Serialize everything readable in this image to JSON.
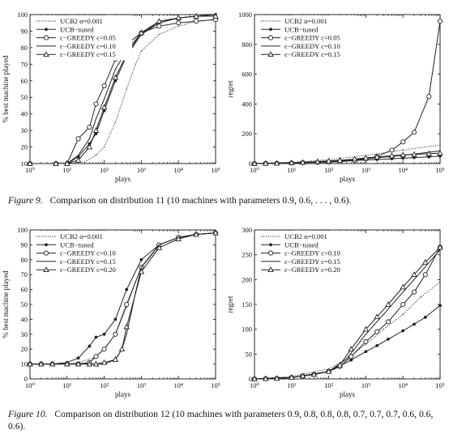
{
  "figure9": {
    "label": "Figure 9.",
    "text": "Comparison on distribution 11 (10 machines with parameters 0.9, 0.6, . . . , 0.6)."
  },
  "figure10": {
    "label": "Figure 10.",
    "text": "Comparison on distribution 12 (10 machines with parameters 0.9, 0.8, 0.8, 0.8, 0.7, 0.7, 0.7, 0.6, 0.6, 0.6)."
  },
  "chart_data": [
    {
      "id": "c1",
      "type": "line",
      "xscale": "log",
      "xlabel": "plays",
      "ylabel": "% best machine played",
      "xlim": [
        1,
        100000
      ],
      "ylim": [
        10,
        100
      ],
      "xticks": [
        1,
        10,
        100,
        1000,
        10000,
        100000
      ],
      "xticklabels": [
        "10⁰",
        "10¹",
        "10²",
        "10³",
        "10⁴",
        "10⁵"
      ],
      "yticks": [
        10,
        20,
        30,
        40,
        50,
        60,
        70,
        80,
        90,
        100
      ],
      "legend_position": "top-left",
      "series": [
        {
          "name": "UCB2 α=0.001",
          "style": "dotted",
          "marker": "none",
          "x": [
            1,
            5,
            10,
            30,
            60,
            100,
            200,
            400,
            700,
            1000,
            3000,
            10000,
            30000,
            100000
          ],
          "y": [
            10,
            10,
            10,
            11,
            15,
            20,
            35,
            55,
            70,
            78,
            88,
            93,
            96,
            97
          ]
        },
        {
          "name": "UCB−tuned",
          "style": "solid",
          "marker": "dot",
          "x": [
            1,
            5,
            10,
            20,
            40,
            60,
            100,
            200,
            400,
            1000,
            3000,
            10000,
            30000,
            100000
          ],
          "y": [
            10,
            10,
            10,
            14,
            22,
            28,
            42,
            60,
            75,
            88,
            95,
            98,
            99,
            100
          ]
        },
        {
          "name": "ε−GREEDY c=0.05",
          "style": "solid",
          "marker": "circle",
          "x": [
            1,
            5,
            10,
            20,
            40,
            60,
            100,
            200,
            400,
            1000,
            3000,
            10000,
            30000,
            100000
          ],
          "y": [
            10,
            10,
            10,
            25,
            32,
            46,
            57,
            73,
            82,
            89,
            93,
            95,
            96,
            97
          ]
        },
        {
          "name": "ε−GREEDY c=0.10",
          "style": "solid",
          "marker": "none",
          "x": [
            1,
            5,
            10,
            20,
            40,
            60,
            100,
            200,
            400,
            1000,
            3000,
            10000,
            30000,
            100000
          ],
          "y": [
            10,
            10,
            10,
            15,
            25,
            37,
            49,
            67,
            78,
            89,
            95,
            98,
            99,
            99
          ]
        },
        {
          "name": "ε−GREEDY c=0.15",
          "style": "solid",
          "marker": "triangle",
          "x": [
            1,
            5,
            10,
            20,
            40,
            60,
            100,
            200,
            400,
            1000,
            3000,
            10000,
            30000,
            100000
          ],
          "y": [
            10,
            10,
            10,
            12,
            20,
            30,
            44,
            62,
            76,
            89,
            96,
            98,
            99,
            99
          ]
        }
      ]
    },
    {
      "id": "c2",
      "type": "line",
      "xscale": "log",
      "xlabel": "plays",
      "ylabel": "regret",
      "xlim": [
        1,
        100000
      ],
      "ylim": [
        0,
        1000
      ],
      "xticks": [
        1,
        10,
        100,
        1000,
        10000,
        100000
      ],
      "xticklabels": [
        "10⁰",
        "10¹",
        "10²",
        "10³",
        "10⁴",
        "10⁵"
      ],
      "yticks": [
        0,
        200,
        400,
        600,
        800,
        1000
      ],
      "legend_position": "top-left",
      "series": [
        {
          "name": "UCB2 α=0.001",
          "style": "dotted",
          "marker": "none",
          "x": [
            1,
            10,
            100,
            1000,
            10000,
            100000
          ],
          "y": [
            0,
            8,
            25,
            55,
            90,
            125
          ]
        },
        {
          "name": "UCB−tuned",
          "style": "solid",
          "marker": "dot",
          "x": [
            1,
            2,
            4,
            10,
            20,
            50,
            100,
            200,
            500,
            1000,
            2000,
            5000,
            10000,
            20000,
            50000,
            100000
          ],
          "y": [
            0,
            1,
            2,
            5,
            7,
            10,
            13,
            16,
            20,
            24,
            27,
            32,
            36,
            40,
            45,
            50
          ]
        },
        {
          "name": "ε−GREEDY c=0.05",
          "style": "solid",
          "marker": "circle",
          "x": [
            1,
            2,
            4,
            10,
            20,
            50,
            100,
            200,
            500,
            1000,
            2000,
            5000,
            10000,
            20000,
            50000,
            100000
          ],
          "y": [
            0,
            1,
            2,
            4,
            6,
            8,
            10,
            13,
            20,
            30,
            48,
            90,
            145,
            210,
            450,
            955
          ]
        },
        {
          "name": "ε−GREEDY c=0.10",
          "style": "solid",
          "marker": "none",
          "x": [
            1,
            10,
            100,
            1000,
            10000,
            100000
          ],
          "y": [
            0,
            5,
            14,
            32,
            55,
            85
          ]
        },
        {
          "name": "ε−GREEDY c=0.15",
          "style": "solid",
          "marker": "triangle",
          "x": [
            1,
            2,
            4,
            10,
            20,
            50,
            100,
            200,
            500,
            1000,
            2000,
            5000,
            10000,
            20000,
            50000,
            100000
          ],
          "y": [
            0,
            1,
            2,
            5,
            8,
            13,
            18,
            22,
            30,
            38,
            44,
            52,
            58,
            62,
            66,
            70
          ]
        }
      ]
    },
    {
      "id": "c3",
      "type": "line",
      "xscale": "log",
      "xlabel": "plays",
      "ylabel": "% best machine played",
      "xlim": [
        1,
        100000
      ],
      "ylim": [
        0,
        100
      ],
      "xticks": [
        1,
        10,
        100,
        1000,
        10000,
        100000
      ],
      "xticklabels": [
        "10⁰",
        "10¹",
        "10²",
        "10³",
        "10⁴",
        "10⁵"
      ],
      "yticks": [
        0,
        10,
        20,
        30,
        40,
        50,
        60,
        70,
        80,
        90,
        100
      ],
      "legend_position": "top-left",
      "series": [
        {
          "name": "UCB2 α=0.001",
          "style": "dotted",
          "marker": "none",
          "x": [
            1,
            10,
            20,
            50,
            100,
            200,
            400,
            700,
            1000,
            3000,
            10000,
            30000,
            100000
          ],
          "y": [
            10,
            10,
            11,
            14,
            20,
            30,
            48,
            65,
            75,
            88,
            94,
            97,
            98
          ]
        },
        {
          "name": "UCB−tuned",
          "style": "solid",
          "marker": "dot",
          "x": [
            1,
            2,
            4,
            10,
            20,
            40,
            60,
            100,
            200,
            400,
            1000,
            3000,
            10000,
            30000,
            100000
          ],
          "y": [
            10,
            10,
            10,
            11,
            14,
            22,
            28,
            30,
            40,
            60,
            80,
            90,
            95,
            97,
            98
          ]
        },
        {
          "name": "ε−GREEDY c=0.10",
          "style": "solid",
          "marker": "circle",
          "x": [
            1,
            2,
            4,
            10,
            20,
            40,
            60,
            100,
            200,
            400,
            1000,
            3000,
            10000,
            30000,
            100000
          ],
          "y": [
            10,
            10,
            10,
            10,
            10,
            11,
            15,
            20,
            30,
            50,
            75,
            90,
            95,
            97,
            98
          ]
        },
        {
          "name": "ε−GREEDY c=0.15",
          "style": "solid",
          "marker": "none",
          "x": [
            1,
            10,
            50,
            100,
            200,
            300,
            400,
            700,
            1000,
            3000,
            10000,
            30000,
            100000
          ],
          "y": [
            10,
            10,
            10,
            10,
            13,
            20,
            30,
            58,
            75,
            90,
            95,
            97,
            98
          ]
        },
        {
          "name": "ε−GREEDY c=0.20",
          "style": "solid",
          "marker": "triangle",
          "x": [
            1,
            2,
            4,
            10,
            20,
            40,
            60,
            100,
            200,
            300,
            400,
            1000,
            3000,
            10000,
            30000,
            100000
          ],
          "y": [
            10,
            10,
            10,
            10,
            10,
            10,
            10,
            11,
            13,
            20,
            35,
            72,
            88,
            94,
            97,
            98
          ]
        }
      ]
    },
    {
      "id": "c4",
      "type": "line",
      "xscale": "log",
      "xlabel": "plays",
      "ylabel": "regret",
      "xlim": [
        1,
        100000
      ],
      "ylim": [
        0,
        300
      ],
      "xticks": [
        1,
        10,
        100,
        1000,
        10000,
        100000
      ],
      "xticklabels": [
        "10⁰",
        "10¹",
        "10²",
        "10³",
        "10⁴",
        "10⁵"
      ],
      "yticks": [
        0,
        50,
        100,
        150,
        200,
        250,
        300
      ],
      "legend_position": "top-left",
      "series": [
        {
          "name": "UCB2 α=0.001",
          "style": "dotted",
          "marker": "none",
          "x": [
            1,
            10,
            100,
            300,
            1000,
            3000,
            10000,
            30000,
            100000
          ],
          "y": [
            0,
            5,
            20,
            40,
            70,
            100,
            130,
            165,
            195
          ]
        },
        {
          "name": "UCB−tuned",
          "style": "solid",
          "marker": "dot",
          "x": [
            1,
            2,
            4,
            10,
            20,
            40,
            100,
            200,
            400,
            1000,
            2000,
            4000,
            10000,
            20000,
            40000,
            100000
          ],
          "y": [
            0,
            0.5,
            1,
            3,
            6,
            9,
            15,
            26,
            38,
            55,
            67,
            80,
            97,
            110,
            124,
            148
          ]
        },
        {
          "name": "ε−GREEDY c=0.10",
          "style": "solid",
          "marker": "circle",
          "x": [
            1,
            2,
            4,
            10,
            20,
            40,
            100,
            200,
            400,
            1000,
            2000,
            4000,
            10000,
            20000,
            40000,
            100000
          ],
          "y": [
            0,
            0.5,
            1,
            3,
            6,
            9,
            15,
            25,
            45,
            75,
            95,
            115,
            150,
            175,
            210,
            265
          ]
        },
        {
          "name": "ε−GREEDY c=0.15",
          "style": "solid",
          "marker": "none",
          "x": [
            1,
            10,
            100,
            300,
            1000,
            3000,
            10000,
            30000,
            100000
          ],
          "y": [
            0,
            3,
            15,
            40,
            90,
            130,
            175,
            215,
            260
          ]
        },
        {
          "name": "ε−GREEDY c=0.20",
          "style": "solid",
          "marker": "triangle",
          "x": [
            1,
            2,
            4,
            10,
            20,
            40,
            100,
            200,
            400,
            1000,
            2000,
            4000,
            10000,
            20000,
            40000,
            100000
          ],
          "y": [
            0,
            0.5,
            1,
            3,
            6,
            9,
            15,
            28,
            60,
            100,
            125,
            150,
            185,
            210,
            235,
            265
          ]
        }
      ]
    }
  ]
}
